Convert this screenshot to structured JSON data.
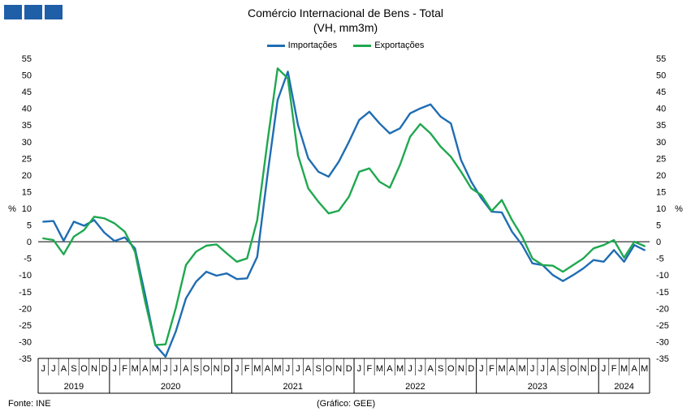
{
  "header": {
    "logo_icon": "logo-blocks-icon",
    "title": "Comércio Internacional de Bens - Total",
    "subtitle": "(VH, mm3m)"
  },
  "footer": {
    "source": "Fonte: INE",
    "credit": "(Gráfico: GEE)"
  },
  "chart_data": {
    "type": "line",
    "ylim": [
      -35,
      55
    ],
    "yticks": [
      55,
      50,
      45,
      40,
      35,
      30,
      25,
      20,
      15,
      10,
      5,
      0,
      -5,
      -10,
      -15,
      -20,
      -25,
      -30,
      -35
    ],
    "ylabel_left": "%",
    "ylabel_right": "%",
    "grid": false,
    "legend_position": "top-center",
    "months": [
      "J",
      "J",
      "A",
      "S",
      "O",
      "N",
      "D",
      "J",
      "F",
      "M",
      "A",
      "M",
      "J",
      "J",
      "A",
      "S",
      "O",
      "N",
      "D",
      "J",
      "F",
      "M",
      "A",
      "M",
      "J",
      "J",
      "A",
      "S",
      "O",
      "N",
      "D",
      "J",
      "F",
      "M",
      "A",
      "M",
      "J",
      "J",
      "A",
      "S",
      "O",
      "N",
      "D",
      "J",
      "F",
      "M",
      "A",
      "M",
      "J",
      "J",
      "A",
      "S",
      "O",
      "N",
      "D",
      "J",
      "F",
      "M",
      "A",
      "M"
    ],
    "years": [
      {
        "label": "2019",
        "start": 0,
        "end": 6
      },
      {
        "label": "2020",
        "start": 7,
        "end": 18
      },
      {
        "label": "2021",
        "start": 19,
        "end": 30
      },
      {
        "label": "2022",
        "start": 31,
        "end": 42
      },
      {
        "label": "2023",
        "start": 43,
        "end": 54
      },
      {
        "label": "2024",
        "start": 55,
        "end": 59
      }
    ],
    "series": [
      {
        "name": "Importações",
        "color": "#1f6db3",
        "values": [
          6.0,
          6.2,
          0.3,
          6.0,
          4.8,
          6.5,
          2.7,
          0.2,
          1.3,
          -2.0,
          -16.0,
          -31.0,
          -34.5,
          -27.0,
          -17.0,
          -12.0,
          -9.0,
          -10.2,
          -9.5,
          -11.2,
          -11.0,
          -4.5,
          20.0,
          42.5,
          51.0,
          35.0,
          25.0,
          21.0,
          19.5,
          24.0,
          30.0,
          36.5,
          39.0,
          35.5,
          32.5,
          34.0,
          38.5,
          40.0,
          41.2,
          37.5,
          35.5,
          24.5,
          18.0,
          13.0,
          9.0,
          8.8,
          3.0,
          -1.0,
          -6.5,
          -7.0,
          -10.0,
          -11.8,
          -10.0,
          -8.0,
          -5.5,
          -6.0,
          -2.5,
          -6.0,
          -1.0,
          -2.5
        ]
      },
      {
        "name": "Exportações",
        "color": "#1fa84f",
        "values": [
          1.0,
          0.5,
          -3.8,
          1.5,
          3.5,
          7.5,
          7.0,
          5.5,
          3.0,
          -3.0,
          -18.0,
          -31.0,
          -30.8,
          -20.0,
          -7.0,
          -3.0,
          -1.2,
          -0.8,
          -3.5,
          -6.0,
          -5.0,
          6.5,
          30.0,
          52.0,
          49.0,
          26.0,
          16.0,
          12.0,
          8.5,
          9.3,
          13.5,
          21.0,
          22.0,
          18.0,
          16.2,
          23.0,
          31.5,
          35.3,
          32.5,
          28.5,
          25.5,
          21.0,
          16.0,
          14.0,
          9.2,
          12.5,
          6.5,
          1.5,
          -5.0,
          -7.0,
          -7.2,
          -9.0,
          -7.0,
          -5.0,
          -2.0,
          -1.0,
          0.5,
          -4.8,
          0.0,
          -1.3
        ]
      }
    ]
  }
}
